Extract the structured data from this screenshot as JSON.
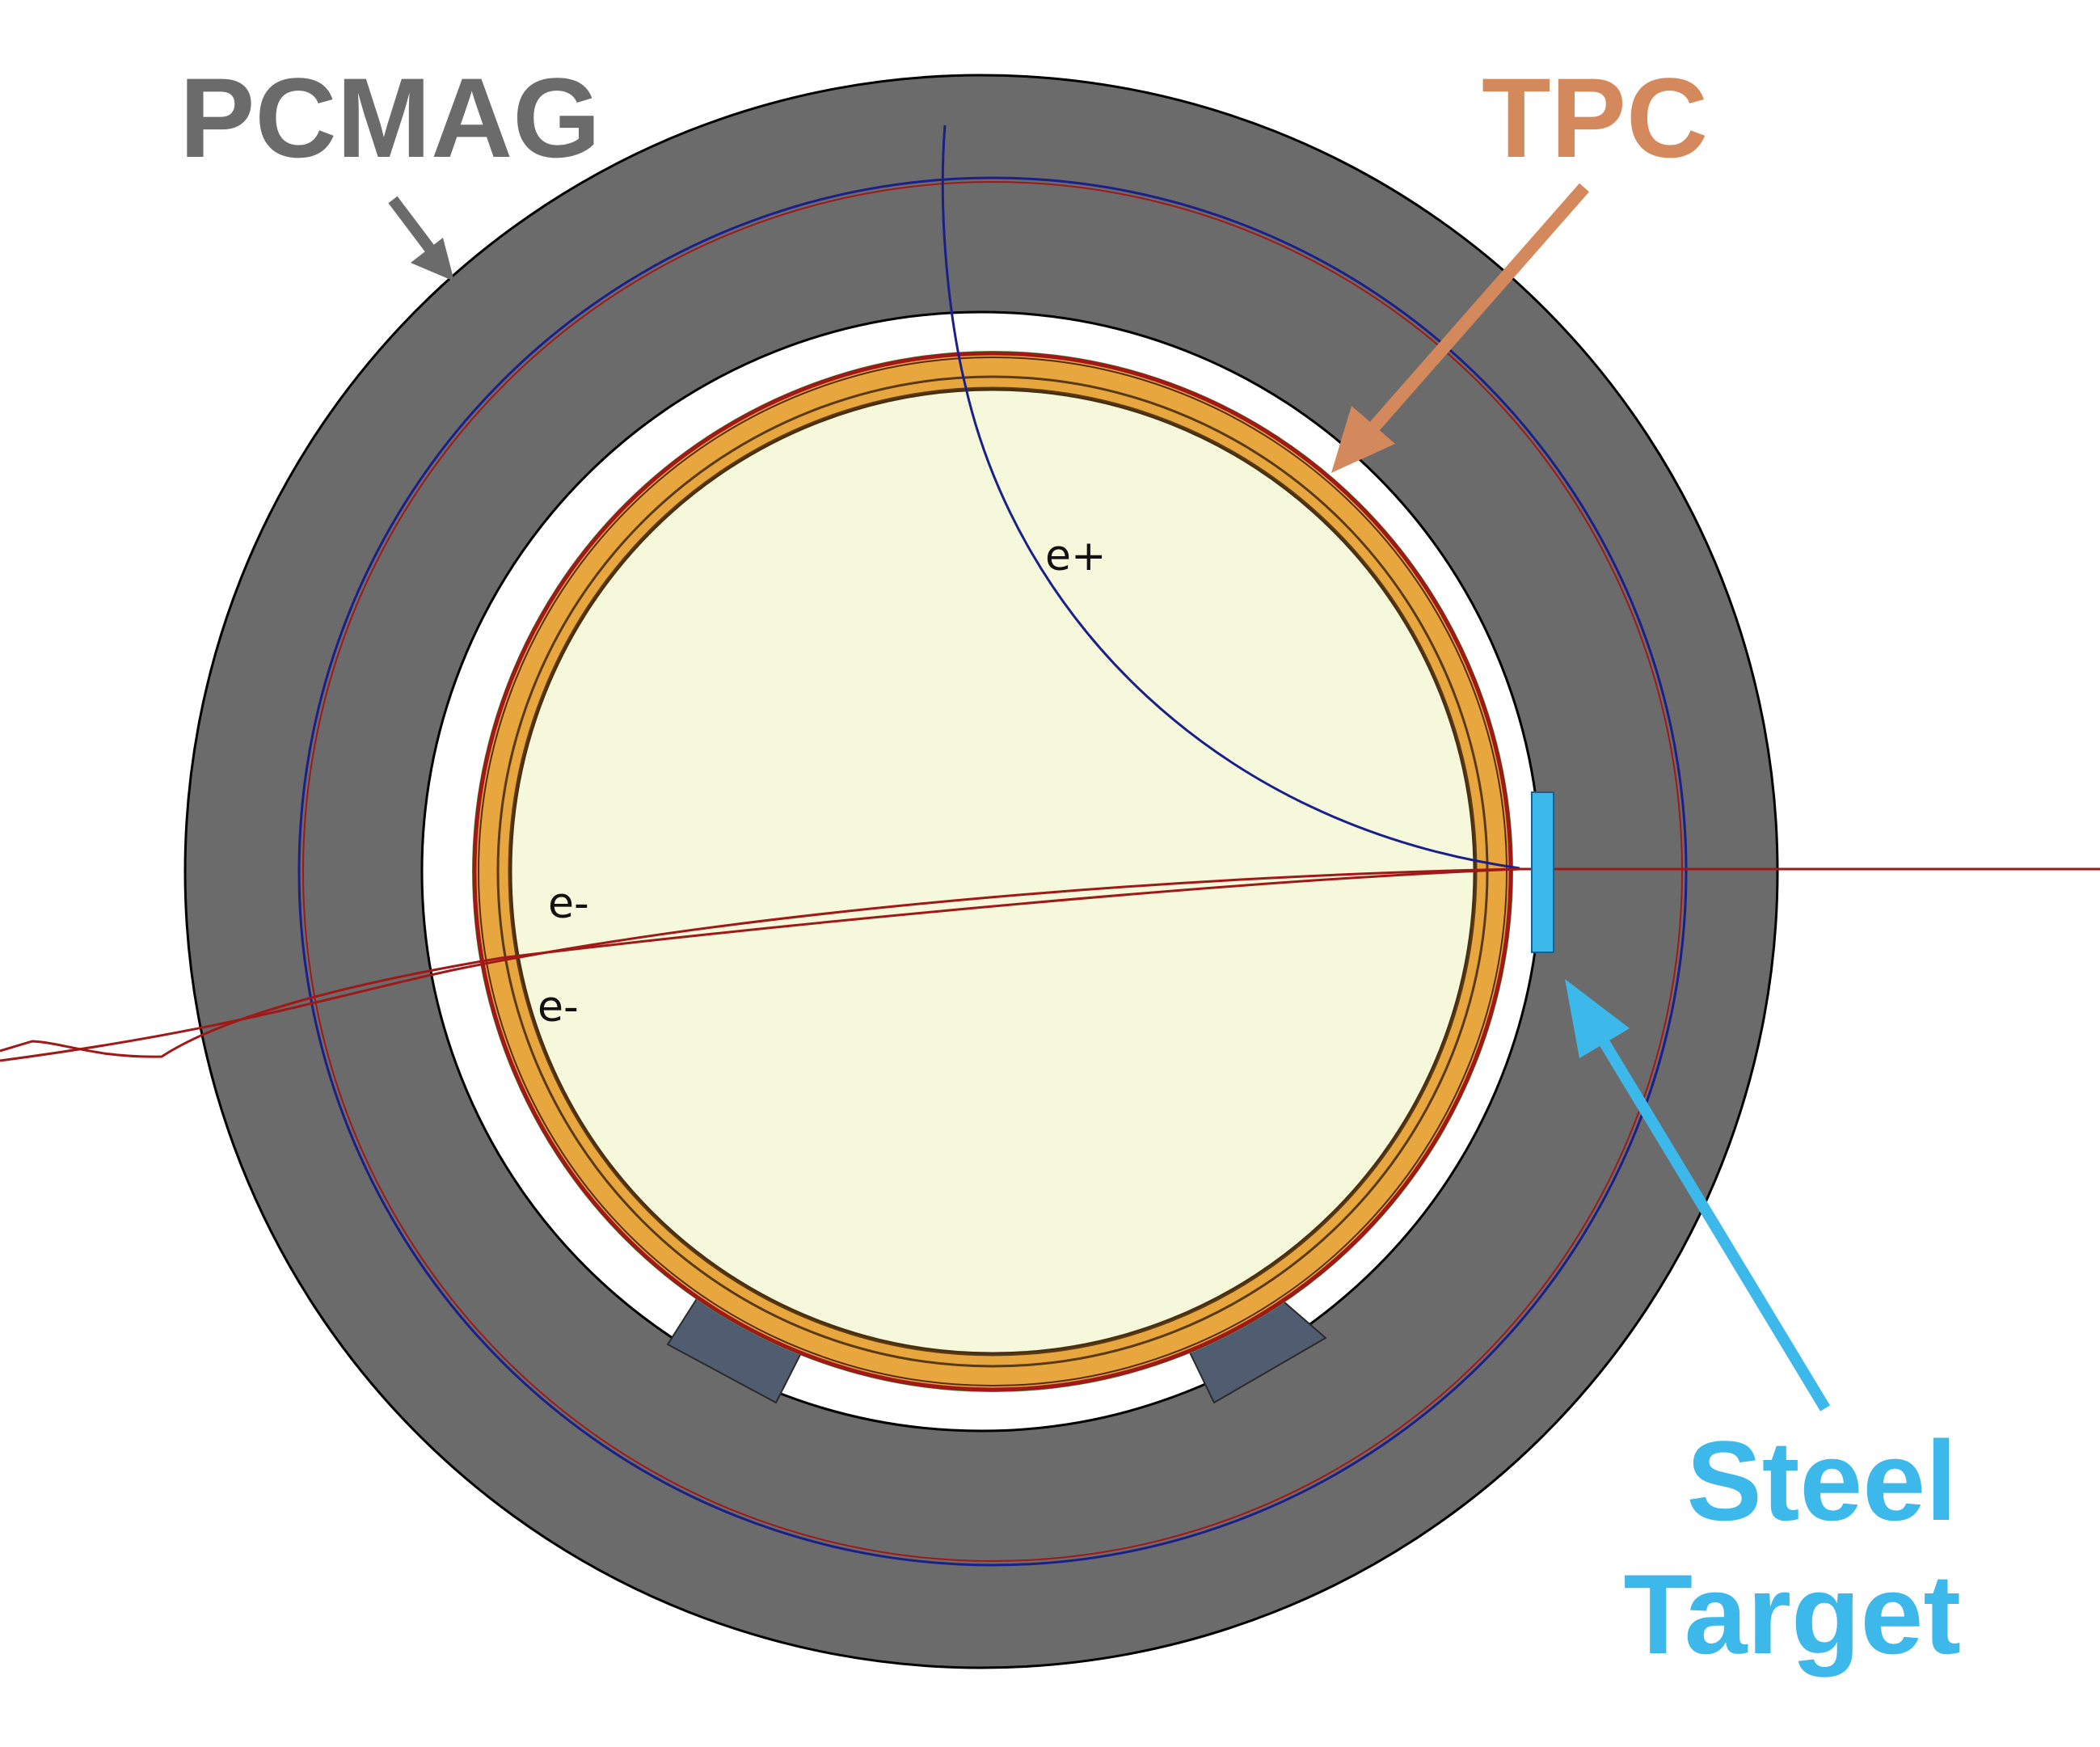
{
  "labels": {
    "pcmag": "PCMAG",
    "tpc": "TPC",
    "steel_line1": "Steel",
    "steel_line2": "Target"
  },
  "tracks": {
    "positron": "e+",
    "electron_1": "e-",
    "electron_2": "e-"
  },
  "colors": {
    "magnet": "#6b6b6b",
    "tpc_ring": "#e8a63e",
    "tpc_gas": "#f6f8dc",
    "steel_target": "#3db8ea",
    "support_blocks": "#505c70",
    "pcmag_label": "#6b6b6b",
    "tpc_label": "#d4895c",
    "steel_label": "#3db8ea",
    "positron_track": "#1a1f8a",
    "electron_track": "#a01818"
  }
}
